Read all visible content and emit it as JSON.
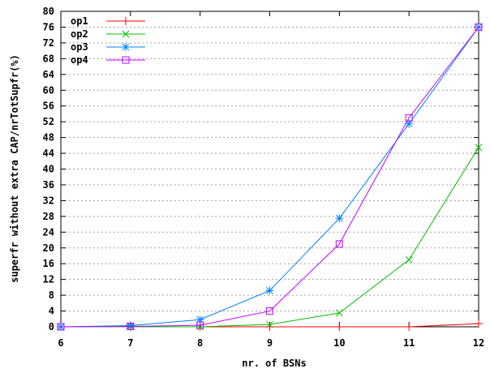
{
  "chart_data": {
    "type": "line",
    "xlabel": "nr. of BSNs",
    "ylabel": "superfr without extra CAP/nrTotSupfr(%)",
    "xlim": [
      6,
      12
    ],
    "ylim": [
      0,
      80
    ],
    "x_ticks": [
      "6",
      "7",
      "8",
      "9",
      "10",
      "11",
      "12"
    ],
    "y_ticks": [
      "0",
      "4",
      "8",
      "12",
      "16",
      "20",
      "24",
      "28",
      "32",
      "36",
      "40",
      "44",
      "48",
      "52",
      "56",
      "60",
      "64",
      "68",
      "72",
      "76",
      "80"
    ],
    "grid": "horizontal-dashed",
    "legend_position": "top-left",
    "x": [
      6,
      7,
      8,
      9,
      10,
      11,
      12
    ],
    "series": [
      {
        "name": "op1",
        "color": "#ff0000",
        "marker": "plus",
        "values": [
          0,
          0,
          0,
          0,
          0,
          0,
          0.8
        ]
      },
      {
        "name": "op2",
        "color": "#00c000",
        "marker": "x",
        "values": [
          0,
          0,
          0,
          0.6,
          3.5,
          17,
          45.5
        ]
      },
      {
        "name": "op3",
        "color": "#0080ff",
        "marker": "star",
        "values": [
          0,
          0.3,
          1.8,
          9.2,
          27.5,
          51.5,
          76
        ]
      },
      {
        "name": "op4",
        "color": "#c000ff",
        "marker": "square",
        "values": [
          0,
          0.1,
          0.4,
          4,
          21,
          53,
          76
        ]
      }
    ]
  }
}
